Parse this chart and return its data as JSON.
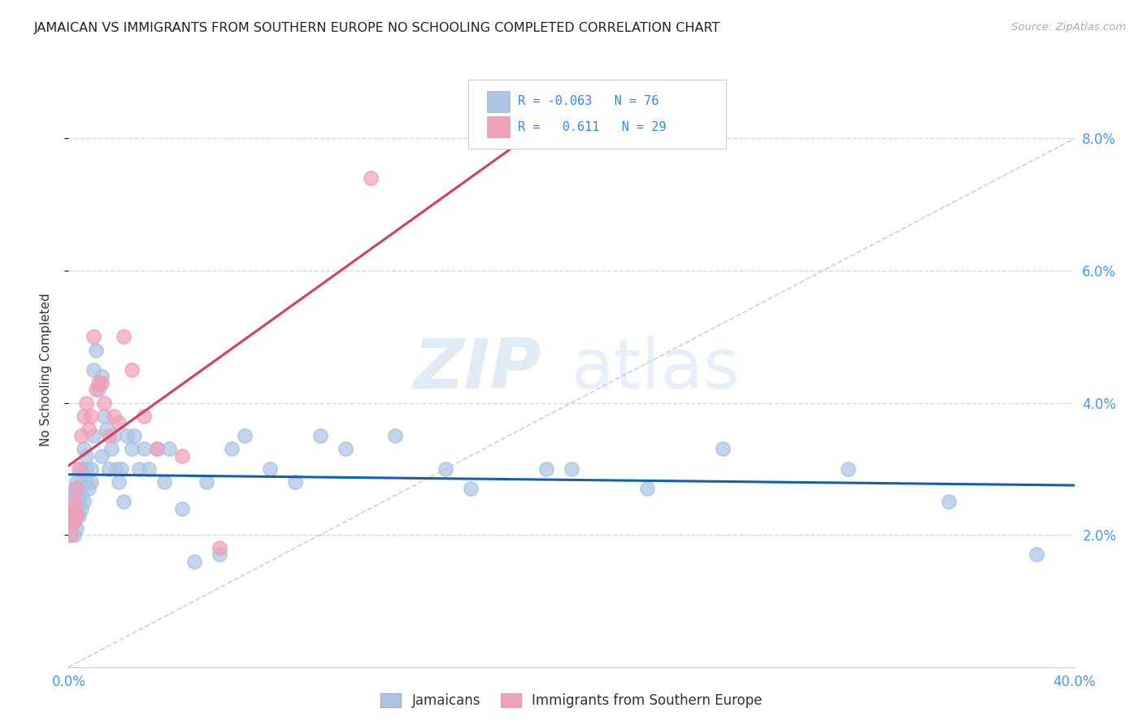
{
  "title": "JAMAICAN VS IMMIGRANTS FROM SOUTHERN EUROPE NO SCHOOLING COMPLETED CORRELATION CHART",
  "source": "Source: ZipAtlas.com",
  "ylabel": "No Schooling Completed",
  "xlim": [
    0.0,
    0.4
  ],
  "ylim": [
    0.0,
    0.09
  ],
  "ytick_vals": [
    0.02,
    0.04,
    0.06,
    0.08
  ],
  "ytick_labels": [
    "2.0%",
    "4.0%",
    "6.0%",
    "8.0%"
  ],
  "xtick_vals": [
    0.0,
    0.1,
    0.2,
    0.3,
    0.4
  ],
  "xtick_labels": [
    "0.0%",
    "",
    "",
    "",
    "40.0%"
  ],
  "jamaican_color": "#aac4e2",
  "southern_europe_color": "#f0a0b8",
  "trend_jamaican_color": "#1460b0",
  "trend_southern_color": "#d04060",
  "diagonal_color": "#d0c8d0",
  "r_jamaican": -0.063,
  "n_jamaican": 76,
  "r_southern": 0.611,
  "n_southern": 29,
  "legend_jamaican": "Jamaicans",
  "legend_southern": "Immigrants from Southern Europe",
  "jamaican_x": [
    0.001,
    0.001,
    0.001,
    0.001,
    0.001,
    0.001,
    0.002,
    0.002,
    0.002,
    0.002,
    0.002,
    0.002,
    0.003,
    0.003,
    0.003,
    0.003,
    0.003,
    0.004,
    0.004,
    0.004,
    0.005,
    0.005,
    0.005,
    0.005,
    0.006,
    0.006,
    0.007,
    0.007,
    0.007,
    0.008,
    0.009,
    0.009,
    0.01,
    0.01,
    0.011,
    0.012,
    0.013,
    0.013,
    0.014,
    0.015,
    0.016,
    0.017,
    0.018,
    0.019,
    0.02,
    0.021,
    0.022,
    0.023,
    0.025,
    0.026,
    0.028,
    0.03,
    0.032,
    0.035,
    0.038,
    0.04,
    0.045,
    0.05,
    0.055,
    0.06,
    0.065,
    0.07,
    0.08,
    0.09,
    0.1,
    0.11,
    0.13,
    0.15,
    0.16,
    0.19,
    0.2,
    0.23,
    0.26,
    0.31,
    0.35,
    0.385
  ],
  "jamaican_y": [
    0.022,
    0.024,
    0.025,
    0.021,
    0.023,
    0.02,
    0.026,
    0.024,
    0.022,
    0.025,
    0.027,
    0.02,
    0.028,
    0.025,
    0.023,
    0.021,
    0.024,
    0.027,
    0.025,
    0.023,
    0.03,
    0.028,
    0.026,
    0.024,
    0.033,
    0.025,
    0.032,
    0.03,
    0.028,
    0.027,
    0.03,
    0.028,
    0.045,
    0.035,
    0.048,
    0.042,
    0.044,
    0.032,
    0.038,
    0.036,
    0.03,
    0.033,
    0.035,
    0.03,
    0.028,
    0.03,
    0.025,
    0.035,
    0.033,
    0.035,
    0.03,
    0.033,
    0.03,
    0.033,
    0.028,
    0.033,
    0.024,
    0.016,
    0.028,
    0.017,
    0.033,
    0.035,
    0.03,
    0.028,
    0.035,
    0.033,
    0.035,
    0.03,
    0.027,
    0.03,
    0.03,
    0.027,
    0.033,
    0.03,
    0.025,
    0.017
  ],
  "southern_x": [
    0.001,
    0.001,
    0.001,
    0.002,
    0.002,
    0.002,
    0.003,
    0.003,
    0.004,
    0.005,
    0.006,
    0.007,
    0.008,
    0.009,
    0.01,
    0.011,
    0.012,
    0.013,
    0.014,
    0.016,
    0.018,
    0.02,
    0.022,
    0.025,
    0.03,
    0.035,
    0.045,
    0.06,
    0.12
  ],
  "southern_y": [
    0.022,
    0.024,
    0.02,
    0.025,
    0.022,
    0.024,
    0.027,
    0.023,
    0.03,
    0.035,
    0.038,
    0.04,
    0.036,
    0.038,
    0.05,
    0.042,
    0.043,
    0.043,
    0.04,
    0.035,
    0.038,
    0.037,
    0.05,
    0.045,
    0.038,
    0.033,
    0.032,
    0.018,
    0.074
  ],
  "watermark_zip": "ZIP",
  "watermark_atlas": "atlas",
  "background_color": "#ffffff",
  "grid_color": "#d8d8d8"
}
